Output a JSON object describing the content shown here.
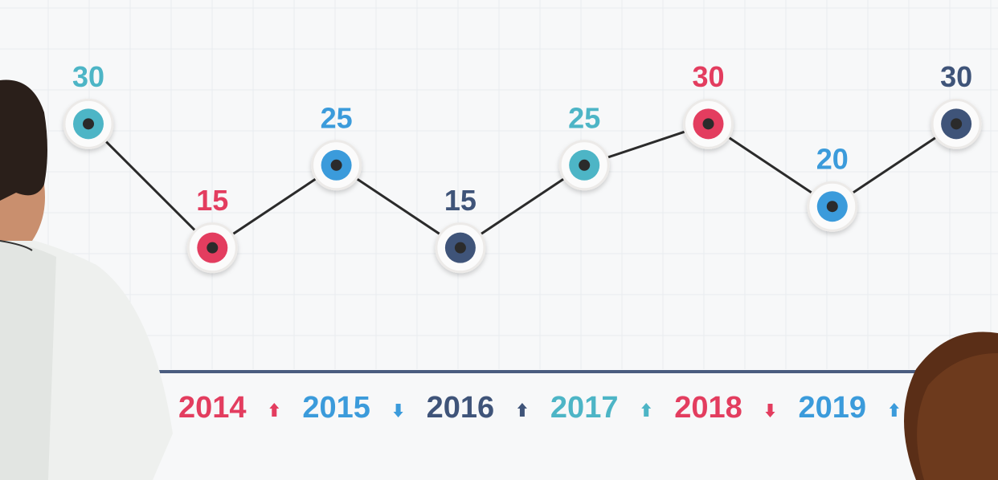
{
  "chart_data": {
    "type": "line",
    "categories": [
      null,
      "2014",
      "2015",
      "2016",
      "2017",
      "2018",
      "2019",
      null
    ],
    "values": [
      30,
      15,
      25,
      15,
      25,
      30,
      20,
      30
    ],
    "point_colors": [
      "#4db5c6",
      "#e33d5f",
      "#3b9bdb",
      "#3f5479",
      "#4db5c6",
      "#e33d5f",
      "#3b9bdb",
      "#3f5479"
    ],
    "line_color": "#2b2b2b",
    "ylim": [
      0,
      45
    ],
    "grid": true
  }
}
